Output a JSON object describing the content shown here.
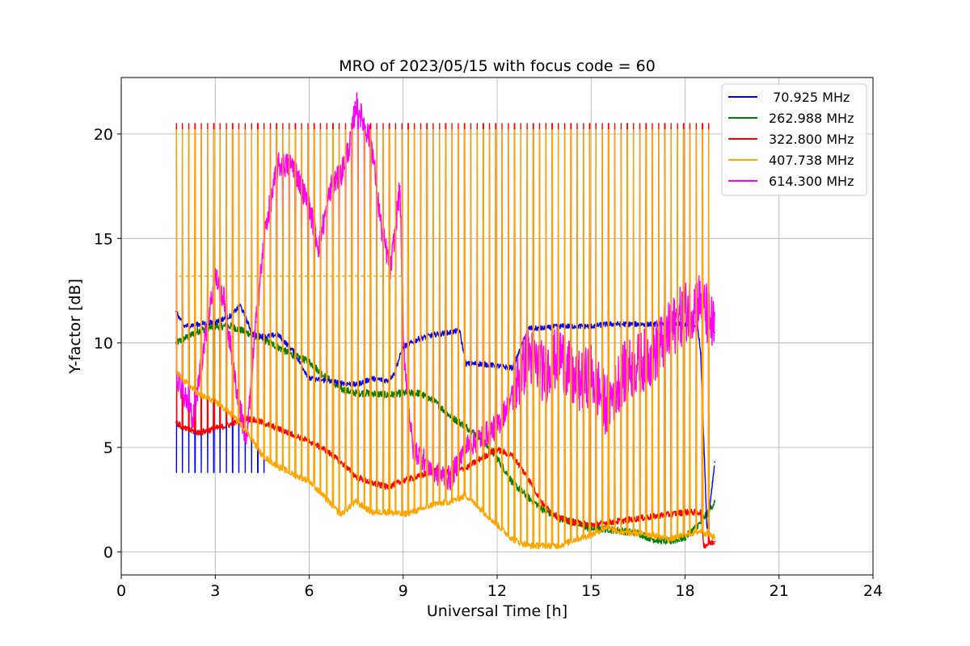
{
  "chart_data": {
    "type": "line",
    "title": "MRO of 2023/05/15 with focus code = 60",
    "xlabel": "Universal Time [h]",
    "ylabel": "Y-factor [dB]",
    "xlim": [
      0,
      24
    ],
    "ylim": [
      -1.1,
      22.7
    ],
    "xticks": [
      0,
      3,
      6,
      9,
      12,
      15,
      18,
      21,
      24
    ],
    "yticks": [
      0,
      5,
      10,
      15,
      20
    ],
    "grid": true,
    "legend_position": "top-right",
    "pulse_period_h": 0.2,
    "series": [
      {
        "name": " 70.925 MHz",
        "color": "#0000ff",
        "pulse_high_until_h": 4.6,
        "pulse_high_value": 3.8,
        "x": [
          1.75,
          2.0,
          2.5,
          3.0,
          3.5,
          3.8,
          4.2,
          4.6,
          5.0,
          5.5,
          6.0,
          6.5,
          7.0,
          7.5,
          8.0,
          8.5,
          8.7,
          9.0,
          9.5,
          10.0,
          10.5,
          10.8,
          11.0,
          11.5,
          12.0,
          12.5,
          13.0,
          13.5,
          14.0,
          14.5,
          15.0,
          15.5,
          16.0,
          16.5,
          17.0,
          17.5,
          18.0,
          18.4,
          18.5,
          18.7,
          18.85,
          18.95
        ],
        "y": [
          11.5,
          10.8,
          10.9,
          11.0,
          11.3,
          11.8,
          10.4,
          10.3,
          10.4,
          9.6,
          8.3,
          8.2,
          8.1,
          8.0,
          8.3,
          8.2,
          8.5,
          9.8,
          10.2,
          10.4,
          10.5,
          10.6,
          9.0,
          9.0,
          8.9,
          8.8,
          10.7,
          10.7,
          10.8,
          10.8,
          10.8,
          10.9,
          10.9,
          10.9,
          10.9,
          10.9,
          10.9,
          10.8,
          9.5,
          1.0,
          3.0,
          4.3
        ]
      },
      {
        "name": "262.988 MHz",
        "color": "#008000",
        "x": [
          1.75,
          2.0,
          2.5,
          3.0,
          3.5,
          4.0,
          4.5,
          5.0,
          5.5,
          6.0,
          6.5,
          7.0,
          7.5,
          8.0,
          8.5,
          9.0,
          9.5,
          10.0,
          10.5,
          11.0,
          11.5,
          12.0,
          12.5,
          13.0,
          13.5,
          14.0,
          14.5,
          15.0,
          15.5,
          16.0,
          16.5,
          17.0,
          17.5,
          18.0,
          18.5,
          18.95
        ],
        "y": [
          10.0,
          10.2,
          10.6,
          10.8,
          10.8,
          10.5,
          10.2,
          9.8,
          9.4,
          9.1,
          8.4,
          7.8,
          7.6,
          7.6,
          7.5,
          7.6,
          7.6,
          7.2,
          6.5,
          6.0,
          5.4,
          4.5,
          3.3,
          2.6,
          2.0,
          1.6,
          1.4,
          1.1,
          1.1,
          1.0,
          0.9,
          0.6,
          0.5,
          0.7,
          1.4,
          2.4
        ]
      },
      {
        "name": "322.800 MHz",
        "color": "#ff0000",
        "pulse_high_value": 20.5,
        "x": [
          1.75,
          2.0,
          2.5,
          3.0,
          3.5,
          4.0,
          4.5,
          5.0,
          5.5,
          6.0,
          6.5,
          7.0,
          7.5,
          8.0,
          8.5,
          9.0,
          9.5,
          10.0,
          10.5,
          11.0,
          11.5,
          12.0,
          12.5,
          13.0,
          13.5,
          14.0,
          14.5,
          15.0,
          15.5,
          16.0,
          16.5,
          17.0,
          17.5,
          18.0,
          18.5,
          18.6,
          18.95
        ],
        "y": [
          6.2,
          5.9,
          5.7,
          5.9,
          6.1,
          6.4,
          6.2,
          5.9,
          5.6,
          5.3,
          4.9,
          4.3,
          3.6,
          3.3,
          3.1,
          3.4,
          3.6,
          3.9,
          3.8,
          4.0,
          4.5,
          4.9,
          4.6,
          3.5,
          2.2,
          1.6,
          1.4,
          1.3,
          1.4,
          1.5,
          1.6,
          1.7,
          1.8,
          1.9,
          1.9,
          0.3,
          0.5
        ]
      },
      {
        "name": "407.738 MHz",
        "color": "#ffa500",
        "pulse_high_value": 20.2,
        "pulse_secondary_until_h": 9.0,
        "pulse_secondary_value": 13.2,
        "x": [
          1.75,
          2.0,
          2.5,
          3.0,
          3.5,
          4.0,
          4.5,
          5.0,
          5.5,
          6.0,
          6.5,
          7.0,
          7.5,
          8.0,
          8.5,
          9.0,
          9.5,
          10.0,
          10.5,
          11.0,
          11.5,
          12.0,
          12.5,
          13.0,
          13.5,
          14.0,
          14.5,
          15.0,
          15.5,
          16.0,
          16.5,
          17.0,
          17.5,
          18.0,
          18.5,
          18.95
        ],
        "y": [
          8.6,
          8.2,
          7.5,
          7.2,
          6.6,
          5.8,
          4.6,
          4.1,
          3.7,
          3.4,
          2.6,
          1.8,
          2.4,
          1.9,
          1.9,
          1.8,
          2.0,
          2.3,
          2.4,
          2.7,
          2.0,
          1.3,
          0.6,
          0.3,
          0.3,
          0.3,
          0.6,
          0.8,
          1.2,
          0.9,
          0.9,
          0.8,
          0.6,
          0.8,
          1.0,
          0.7
        ]
      },
      {
        "name": "614.300 MHz",
        "color": "#ff00ff",
        "pulse_high_value": 13.4,
        "pulse_active_until_h": 12.2,
        "x": [
          1.75,
          2.0,
          2.3,
          2.7,
          3.0,
          3.3,
          3.6,
          4.0,
          4.3,
          4.6,
          5.0,
          5.5,
          6.0,
          6.3,
          6.7,
          7.0,
          7.3,
          7.5,
          7.8,
          8.0,
          8.3,
          8.6,
          8.9,
          9.0,
          9.3,
          9.6,
          10.0,
          10.5,
          11.0,
          11.5,
          12.0,
          12.5,
          13.0,
          13.5,
          14.0,
          14.5,
          15.0,
          15.5,
          16.0,
          16.5,
          17.0,
          17.5,
          18.0,
          18.5,
          18.95
        ],
        "y": [
          8.6,
          7.5,
          6.4,
          10.5,
          13.2,
          12.0,
          8.5,
          5.2,
          11.0,
          15.5,
          18.5,
          18.5,
          16.5,
          14.6,
          17.5,
          18.0,
          19.5,
          21.5,
          20.3,
          19.5,
          15.5,
          13.5,
          17.5,
          10.0,
          5.0,
          4.5,
          3.8,
          3.5,
          5.0,
          5.5,
          6.0,
          7.5,
          9.5,
          8.5,
          9.5,
          8.0,
          8.5,
          7.0,
          8.5,
          9.0,
          9.5,
          10.5,
          11.5,
          12.0,
          10.5
        ]
      }
    ]
  }
}
